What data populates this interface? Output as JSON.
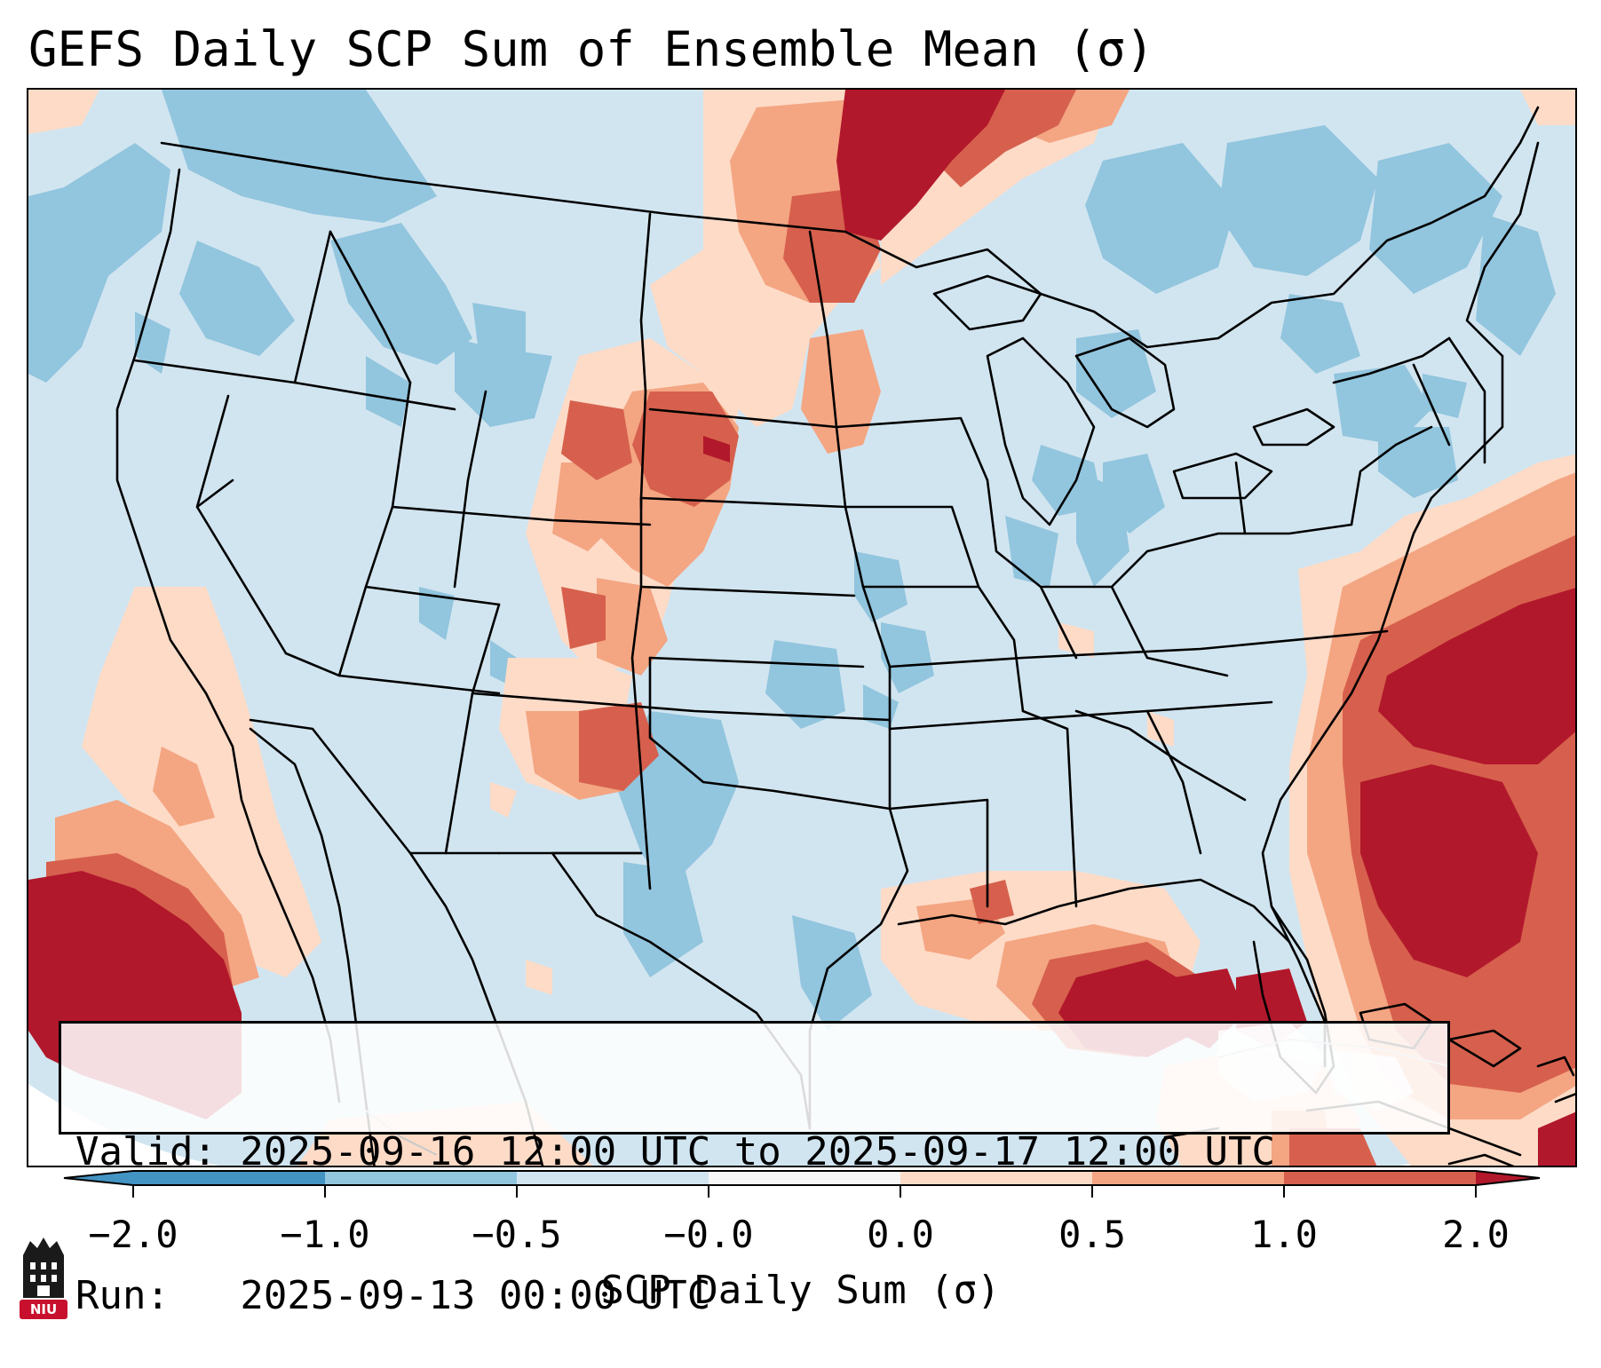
{
  "title": "GEFS Daily SCP Sum of Ensemble Mean (σ)",
  "info": {
    "valid_line": "Valid: 2025-09-16 12:00 UTC to 2025-09-17 12:00 UTC",
    "run_line": "Run:   2025-09-13 00:00 UTC"
  },
  "colorbar": {
    "label": "SCP Daily Sum (σ)",
    "ticks": [
      "−2.0",
      "−1.0",
      "−0.5",
      "−0.0",
      "0.0",
      "0.5",
      "1.0",
      "2.0"
    ],
    "colors": {
      "extend_low": "#4393c3",
      "bin_neg2_neg1": "#4393c3",
      "bin_neg1_neg05": "#92c5de",
      "bin_neg05_0": "#d1e5f0",
      "bin_0_05": "#fddbc7",
      "bin_05_1": "#f4a582",
      "bin_1_2": "#d6604d",
      "extend_high": "#b2182b",
      "masked_zero": "#f7f7f7"
    }
  },
  "logo": {
    "text": "NIU",
    "color": "#c8102e"
  }
}
